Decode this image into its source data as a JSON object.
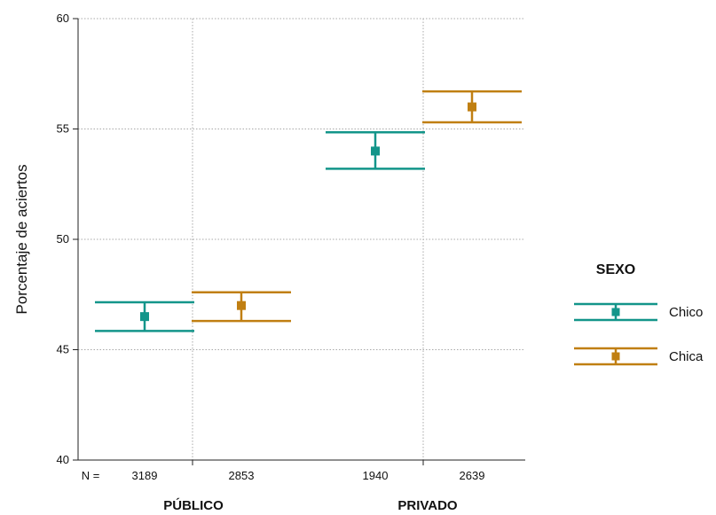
{
  "chart_data": {
    "type": "errorbar",
    "ylabel": "Porcentaje de aciertos",
    "ylim": [
      40,
      60
    ],
    "yticks": [
      40,
      45,
      50,
      55,
      60
    ],
    "n_label": "N =",
    "groups": [
      "PÚBLICO",
      "PRIVADO"
    ],
    "legend": {
      "title": "SEXO",
      "position": "right"
    },
    "grid": true,
    "series": [
      {
        "name": "Chico",
        "color": "#13958a",
        "points": [
          {
            "group": "PÚBLICO",
            "n": "3189",
            "mean": 46.5,
            "lower": 45.85,
            "upper": 47.15
          },
          {
            "group": "PRIVADO",
            "n": "1940",
            "mean": 54.0,
            "lower": 53.2,
            "upper": 54.85
          }
        ]
      },
      {
        "name": "Chica",
        "color": "#c07f12",
        "points": [
          {
            "group": "PÚBLICO",
            "n": "2853",
            "mean": 47.0,
            "lower": 46.3,
            "upper": 47.6
          },
          {
            "group": "PRIVADO",
            "n": "2639",
            "mean": 56.0,
            "lower": 55.3,
            "upper": 56.7
          }
        ]
      }
    ]
  }
}
